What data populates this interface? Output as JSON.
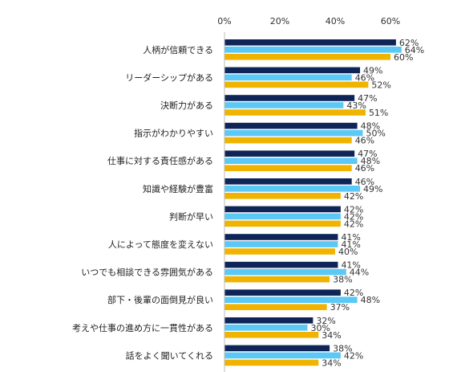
{
  "chart_data": {
    "type": "bar",
    "orientation": "horizontal",
    "categories": [
      "人柄が信頼できる",
      "リーダーシップがある",
      "決断力がある",
      "指示がわかりやすい",
      "仕事に対する責任感がある",
      "知識や経験が豊富",
      "判断が早い",
      "人によって態度を変えない",
      "いつでも相談できる雰囲気がある",
      "部下・後輩の面倒見が良い",
      "考えや仕事の進め方に一貫性がある",
      "話をよく聞いてくれる"
    ],
    "series": [
      {
        "values": [
          62,
          49,
          47,
          48,
          47,
          46,
          42,
          41,
          41,
          42,
          32,
          38
        ],
        "color": "#0f2558"
      },
      {
        "values": [
          64,
          46,
          43,
          50,
          48,
          49,
          42,
          41,
          44,
          48,
          30,
          42
        ],
        "color": "#5bc8f5"
      },
      {
        "values": [
          60,
          52,
          51,
          46,
          46,
          42,
          42,
          40,
          38,
          37,
          34,
          34
        ],
        "color": "#f0b400"
      }
    ],
    "xlim": [
      0,
      80
    ],
    "xticks": [
      "0%",
      "20%",
      "40%",
      "60%"
    ],
    "xtick_values": [
      0,
      20,
      40,
      60
    ],
    "grid": false,
    "legend": "none",
    "value_suffix": "%",
    "title": "",
    "xlabel": "",
    "ylabel": ""
  }
}
